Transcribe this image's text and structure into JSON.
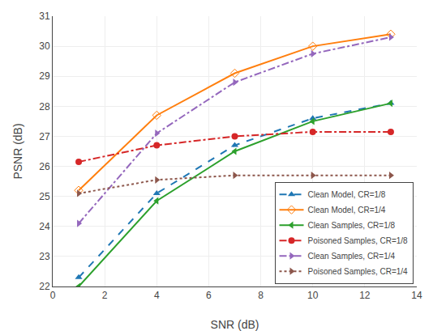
{
  "chart_data": {
    "type": "line",
    "x": [
      1,
      4,
      7,
      10,
      13
    ],
    "series": [
      {
        "name": "Clean Model, CR=1/8",
        "values": [
          22.3,
          25.1,
          26.7,
          27.6,
          28.1
        ],
        "marker": "triangle-up",
        "line_style": "dash"
      },
      {
        "name": "Clean Model, CR=1/4",
        "values": [
          25.2,
          27.7,
          29.1,
          30.0,
          30.4
        ],
        "marker": "diamond-open",
        "line_style": "solid"
      },
      {
        "name": "Clean Samples, CR=1/8",
        "values": [
          22.0,
          24.85,
          26.5,
          27.5,
          28.1
        ],
        "marker": "triangle-left",
        "line_style": "solid"
      },
      {
        "name": "Poisoned Samples, CR=1/8",
        "values": [
          26.15,
          26.7,
          27.0,
          27.15,
          27.15
        ],
        "marker": "circle",
        "line_style": "dashdot"
      },
      {
        "name": "Clean Samples, CR=1/4",
        "values": [
          24.1,
          27.1,
          28.8,
          29.75,
          30.3
        ],
        "marker": "triangle-right",
        "line_style": "dashdot"
      },
      {
        "name": "Poisoned Samples, CR=1/4",
        "values": [
          25.1,
          25.55,
          25.7,
          25.7,
          25.7
        ],
        "marker": "triangle-right",
        "line_style": "dot"
      }
    ],
    "xlabel": "SNR (dB)",
    "ylabel": "PSNR (dB)",
    "xlim": [
      0,
      14
    ],
    "ylim": [
      22,
      31
    ],
    "xticks": [
      0,
      2,
      4,
      6,
      8,
      10,
      12,
      14
    ],
    "yticks": [
      22,
      23,
      24,
      25,
      26,
      27,
      28,
      29,
      30,
      31
    ],
    "grid": true,
    "legend": "lower right"
  }
}
